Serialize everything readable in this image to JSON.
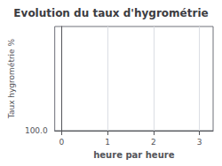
{
  "chart_data": {
    "type": "line",
    "title": "Evolution du taux d'hygrométrie",
    "xlabel": "heure par heure",
    "ylabel": "Taux hygrométrie %",
    "xlim": [
      -0.15,
      3.3
    ],
    "xticks": [
      0,
      1,
      2,
      3
    ],
    "ylim": [
      100.0,
      500.0
    ],
    "yticks": [
      {
        "value": 100.0,
        "label": "100.0"
      }
    ],
    "grid": true
  }
}
